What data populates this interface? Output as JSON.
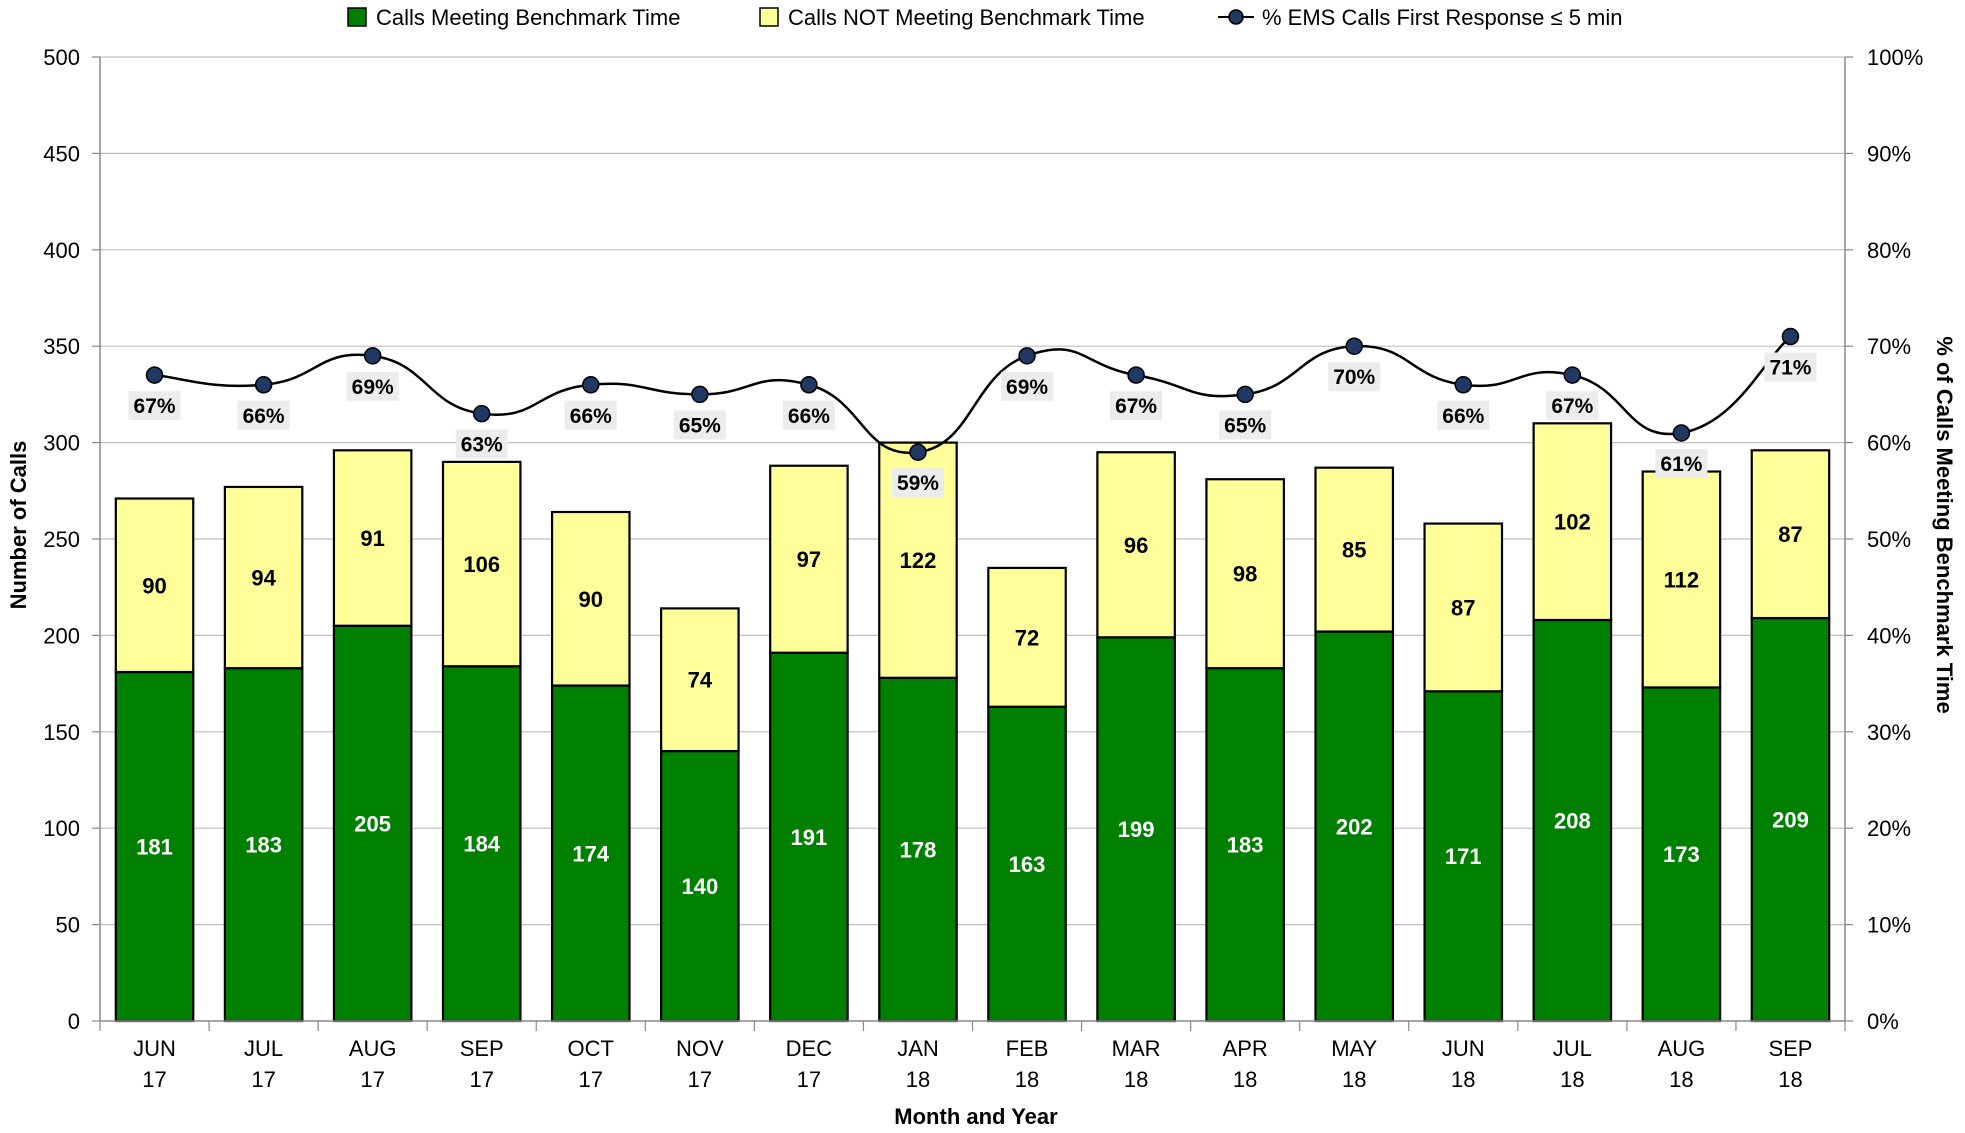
{
  "chart_data": {
    "type": "bar",
    "stacked": true,
    "xlabel": "Month and Year",
    "ylabel": "Number of Calls",
    "y2label": "% of Calls Meeting Benchmark Time",
    "ylim": [
      0,
      500
    ],
    "y_ticks": [
      "0",
      "50",
      "100",
      "150",
      "200",
      "250",
      "300",
      "350",
      "400",
      "450",
      "500"
    ],
    "y2lim": [
      0,
      100
    ],
    "y2_ticks": [
      "0%",
      "10%",
      "20%",
      "30%",
      "40%",
      "50%",
      "60%",
      "70%",
      "80%",
      "90%",
      "100%"
    ],
    "grid": true,
    "legend_position": "top",
    "categories": [
      [
        "JUN",
        "17"
      ],
      [
        "JUL",
        "17"
      ],
      [
        "AUG",
        "17"
      ],
      [
        "SEP",
        "17"
      ],
      [
        "OCT",
        "17"
      ],
      [
        "NOV",
        "17"
      ],
      [
        "DEC",
        "17"
      ],
      [
        "JAN",
        "18"
      ],
      [
        "FEB",
        "18"
      ],
      [
        "MAR",
        "18"
      ],
      [
        "APR",
        "18"
      ],
      [
        "MAY",
        "18"
      ],
      [
        "JUN",
        "18"
      ],
      [
        "JUL",
        "18"
      ],
      [
        "AUG",
        "18"
      ],
      [
        "SEP",
        "18"
      ]
    ],
    "series": [
      {
        "name": "Calls Meeting Benchmark Time",
        "type": "bar",
        "color": "#008000",
        "values": [
          181,
          183,
          205,
          184,
          174,
          140,
          191,
          178,
          163,
          199,
          183,
          202,
          171,
          208,
          173,
          209
        ]
      },
      {
        "name": "Calls NOT Meeting Benchmark Time",
        "type": "bar",
        "color": "#FFFF99",
        "values": [
          90,
          94,
          91,
          106,
          90,
          74,
          97,
          122,
          72,
          96,
          98,
          85,
          87,
          102,
          112,
          87
        ]
      },
      {
        "name": "% EMS Calls First Response ≤ 5 min",
        "type": "line",
        "axis": "secondary",
        "color": "#000000",
        "marker_color": "#1F3864",
        "values": [
          67,
          66,
          69,
          63,
          66,
          65,
          66,
          59,
          69,
          67,
          65,
          70,
          66,
          67,
          61,
          71
        ],
        "labels": [
          "67%",
          "66%",
          "69%",
          "63%",
          "66%",
          "65%",
          "66%",
          "59%",
          "69%",
          "67%",
          "65%",
          "70%",
          "66%",
          "67%",
          "61%",
          "71%"
        ]
      }
    ]
  }
}
